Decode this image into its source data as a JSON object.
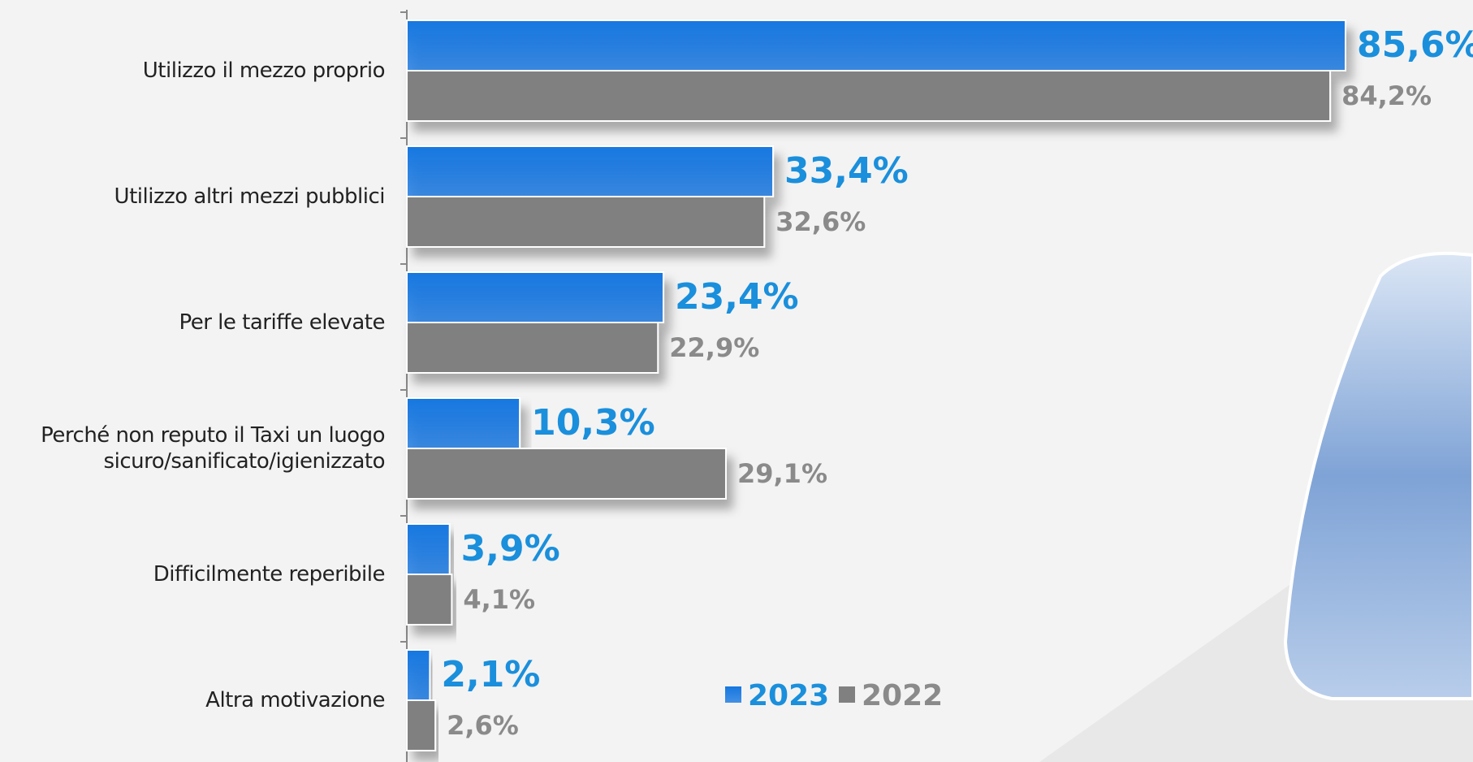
{
  "chart_data": {
    "type": "hbar",
    "categories": [
      "Utilizzo il mezzo proprio",
      "Utilizzo altri mezzi pubblici",
      "Per le tariffe elevate",
      "Perché non reputo il Taxi un luogo\nsicuro/sanificato/igienizzato",
      "Difficilmente reperibile",
      "Altra motivazione"
    ],
    "series": [
      {
        "name": "2023",
        "color": "#1677e0",
        "label_color": "#1a8fdc",
        "values": [
          85.6,
          33.4,
          23.4,
          10.3,
          3.9,
          2.1
        ],
        "value_labels": [
          "85,6%",
          "33,4%",
          "23,4%",
          "10,3%",
          "3,9%",
          "2,1%"
        ]
      },
      {
        "name": "2022",
        "color": "#808080",
        "label_color": "#8a8a8a",
        "values": [
          84.2,
          32.6,
          22.9,
          29.1,
          4.1,
          2.6
        ],
        "value_labels": [
          "84,2%",
          "32,6%",
          "22,9%",
          "29,1%",
          "4,1%",
          "2,6%"
        ]
      }
    ],
    "legend": "bottom-center"
  }
}
